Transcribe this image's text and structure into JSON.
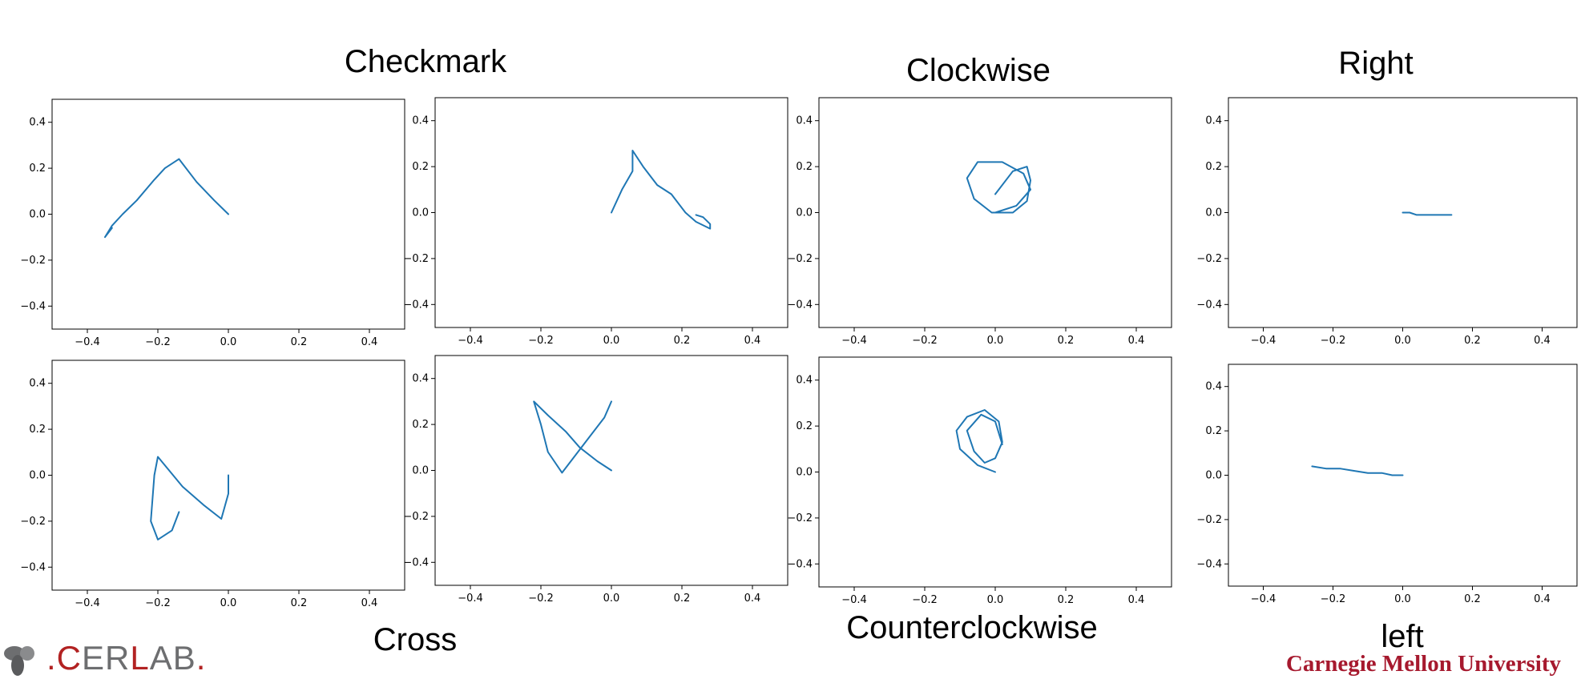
{
  "labels": {
    "checkmark": "Checkmark",
    "clockwise": "Clockwise",
    "right": "Right",
    "cross": "Cross",
    "counterclockwise": "Counterclockwise",
    "left": "left"
  },
  "logos": {
    "cerlab_dot": ".",
    "cerlab_c": "C",
    "cerlab_e": "E",
    "cerlab_r": "R",
    "cerlab_l": "L",
    "cerlab_ab": "AB",
    "cerlab_end": ".",
    "cmu": "Carnegie Mellon University"
  },
  "colors": {
    "line": "#1f77b4",
    "cerlab_red": "#b22222",
    "cerlab_gray": "#6d6e70",
    "cmu_red": "#a6192e"
  },
  "chart_data": [
    {
      "type": "line",
      "gesture": "Checkmark",
      "xlim": [
        -0.5,
        0.5
      ],
      "ylim": [
        -0.5,
        0.5
      ],
      "xticks": [
        -0.4,
        -0.2,
        0.0,
        0.2,
        0.4
      ],
      "yticks": [
        -0.4,
        -0.2,
        0.0,
        0.2,
        0.4
      ],
      "x": [
        0.0,
        -0.04,
        -0.09,
        -0.13,
        -0.14,
        -0.18,
        -0.21,
        -0.26,
        -0.3,
        -0.33,
        -0.35,
        -0.33
      ],
      "y": [
        0.0,
        0.06,
        0.14,
        0.22,
        0.24,
        0.2,
        0.15,
        0.06,
        0.0,
        -0.05,
        -0.1,
        -0.06
      ]
    },
    {
      "type": "line",
      "gesture": "Checkmark",
      "xlim": [
        -0.5,
        0.5
      ],
      "ylim": [
        -0.5,
        0.5
      ],
      "xticks": [
        -0.4,
        -0.2,
        0.0,
        0.2,
        0.4
      ],
      "yticks": [
        -0.4,
        -0.2,
        0.0,
        0.2,
        0.4
      ],
      "x": [
        0.0,
        0.03,
        0.06,
        0.06,
        0.09,
        0.13,
        0.17,
        0.21,
        0.24,
        0.28,
        0.28,
        0.26,
        0.24
      ],
      "y": [
        0.0,
        0.1,
        0.18,
        0.27,
        0.2,
        0.12,
        0.08,
        0.0,
        -0.04,
        -0.07,
        -0.05,
        -0.02,
        -0.01
      ]
    },
    {
      "type": "line",
      "gesture": "Clockwise",
      "xlim": [
        -0.5,
        0.5
      ],
      "ylim": [
        -0.5,
        0.5
      ],
      "xticks": [
        -0.4,
        -0.2,
        0.0,
        0.2,
        0.4
      ],
      "yticks": [
        -0.4,
        -0.2,
        0.0,
        0.2,
        0.4
      ],
      "x": [
        0.0,
        0.06,
        0.1,
        0.08,
        0.02,
        -0.05,
        -0.08,
        -0.06,
        -0.01,
        0.05,
        0.09,
        0.1,
        0.09,
        0.05,
        0.0
      ],
      "y": [
        0.0,
        0.03,
        0.1,
        0.17,
        0.22,
        0.22,
        0.15,
        0.06,
        0.0,
        0.0,
        0.05,
        0.14,
        0.2,
        0.18,
        0.08
      ]
    },
    {
      "type": "line",
      "gesture": "Right",
      "xlim": [
        -0.5,
        0.5
      ],
      "ylim": [
        -0.5,
        0.5
      ],
      "xticks": [
        -0.4,
        -0.2,
        0.0,
        0.2,
        0.4
      ],
      "yticks": [
        -0.4,
        -0.2,
        0.0,
        0.2,
        0.4
      ],
      "x": [
        0.0,
        0.02,
        0.04,
        0.06,
        0.08,
        0.1,
        0.12,
        0.14
      ],
      "y": [
        0.0,
        0.0,
        -0.01,
        -0.01,
        -0.01,
        -0.01,
        -0.01,
        -0.01
      ]
    },
    {
      "type": "line",
      "gesture": "Cross",
      "xlim": [
        -0.5,
        0.5
      ],
      "ylim": [
        -0.5,
        0.5
      ],
      "xticks": [
        -0.4,
        -0.2,
        0.0,
        0.2,
        0.4
      ],
      "yticks": [
        -0.4,
        -0.2,
        0.0,
        0.2,
        0.4
      ],
      "x": [
        0.0,
        0.0,
        0.0,
        -0.02,
        -0.07,
        -0.13,
        -0.2,
        -0.21,
        -0.22,
        -0.2,
        -0.16,
        -0.14
      ],
      "y": [
        0.0,
        -0.03,
        -0.08,
        -0.19,
        -0.13,
        -0.05,
        0.08,
        0.0,
        -0.2,
        -0.28,
        -0.24,
        -0.16
      ]
    },
    {
      "type": "line",
      "gesture": "Cross",
      "xlim": [
        -0.5,
        0.5
      ],
      "ylim": [
        -0.5,
        0.5
      ],
      "xticks": [
        -0.4,
        -0.2,
        0.0,
        0.2,
        0.4
      ],
      "yticks": [
        -0.4,
        -0.2,
        0.0,
        0.2,
        0.4
      ],
      "x": [
        0.0,
        -0.04,
        -0.09,
        -0.13,
        -0.18,
        -0.22,
        -0.2,
        -0.18,
        -0.14,
        -0.1,
        -0.06,
        -0.02,
        0.0
      ],
      "y": [
        0.0,
        0.04,
        0.1,
        0.17,
        0.24,
        0.3,
        0.2,
        0.08,
        -0.01,
        0.07,
        0.15,
        0.23,
        0.3
      ]
    },
    {
      "type": "line",
      "gesture": "Counterclockwise",
      "xlim": [
        -0.5,
        0.5
      ],
      "ylim": [
        -0.5,
        0.5
      ],
      "xticks": [
        -0.4,
        -0.2,
        0.0,
        0.2,
        0.4
      ],
      "yticks": [
        -0.4,
        -0.2,
        0.0,
        0.2,
        0.4
      ],
      "x": [
        0.0,
        -0.05,
        -0.1,
        -0.11,
        -0.08,
        -0.03,
        0.01,
        0.02,
        0.0,
        -0.03,
        -0.06,
        -0.08,
        -0.04,
        0.0,
        0.02
      ],
      "y": [
        0.0,
        0.03,
        0.1,
        0.18,
        0.24,
        0.27,
        0.22,
        0.13,
        0.06,
        0.04,
        0.09,
        0.18,
        0.25,
        0.22,
        0.12
      ]
    },
    {
      "type": "line",
      "gesture": "left",
      "xlim": [
        -0.5,
        0.5
      ],
      "ylim": [
        -0.5,
        0.5
      ],
      "xticks": [
        -0.4,
        -0.2,
        0.0,
        0.2,
        0.4
      ],
      "yticks": [
        -0.4,
        -0.2,
        0.0,
        0.2,
        0.4
      ],
      "x": [
        0.0,
        -0.03,
        -0.06,
        -0.1,
        -0.14,
        -0.18,
        -0.22,
        -0.26
      ],
      "y": [
        0.0,
        0.0,
        0.01,
        0.01,
        0.02,
        0.03,
        0.03,
        0.04
      ]
    }
  ]
}
